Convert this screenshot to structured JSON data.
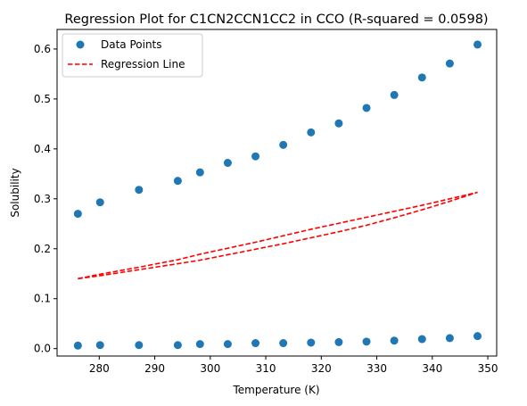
{
  "chart_data": {
    "type": "scatter",
    "title": "Regression Plot for C1CN2CCN1CC2 in CCO (R-squared = 0.0598)",
    "xlabel": "Temperature (K)",
    "ylabel": "Solubility",
    "xlim": [
      272.4,
      351.6
    ],
    "ylim": [
      -0.0149,
      0.6392
    ],
    "xticks": [
      280,
      290,
      300,
      310,
      320,
      330,
      340,
      350
    ],
    "yticks": [
      0.0,
      0.1,
      0.2,
      0.3,
      0.4,
      0.5,
      0.6
    ],
    "grid": false,
    "legend_position": "upper left",
    "series": [
      {
        "name": "Data Points",
        "kind": "scatter",
        "color": "#1f77b4",
        "x": [
          276.15,
          280.15,
          287.15,
          294.15,
          298.15,
          303.15,
          308.15,
          313.15,
          318.15,
          323.15,
          328.15,
          333.15,
          338.15,
          343.15,
          348.15,
          276.15,
          280.15,
          287.15,
          294.15,
          298.15,
          303.15,
          308.15,
          313.15,
          318.15,
          323.15,
          328.15,
          333.15,
          338.15,
          343.15,
          348.15
        ],
        "y": [
          0.27,
          0.293,
          0.318,
          0.336,
          0.353,
          0.372,
          0.385,
          0.408,
          0.433,
          0.451,
          0.482,
          0.508,
          0.543,
          0.571,
          0.609,
          0.006,
          0.007,
          0.007,
          0.007,
          0.009,
          0.009,
          0.011,
          0.011,
          0.012,
          0.013,
          0.014,
          0.016,
          0.019,
          0.021,
          0.025
        ]
      },
      {
        "name": "Regression Line",
        "kind": "line",
        "style": "dashed",
        "color": "#ff0000",
        "x": [
          276.15,
          280.15,
          287.15,
          294.15,
          298.15,
          303.15,
          308.15,
          313.15,
          318.15,
          323.15,
          328.15,
          333.15,
          338.15,
          343.15,
          348.15
        ],
        "y_upper": [
          0.14,
          0.149,
          0.163,
          0.178,
          0.189,
          0.201,
          0.213,
          0.226,
          0.239,
          0.251,
          0.263,
          0.275,
          0.287,
          0.3,
          0.313
        ],
        "y_lower": [
          0.14,
          0.146,
          0.158,
          0.17,
          0.177,
          0.188,
          0.199,
          0.21,
          0.222,
          0.234,
          0.247,
          0.262,
          0.278,
          0.295,
          0.313
        ]
      }
    ]
  }
}
